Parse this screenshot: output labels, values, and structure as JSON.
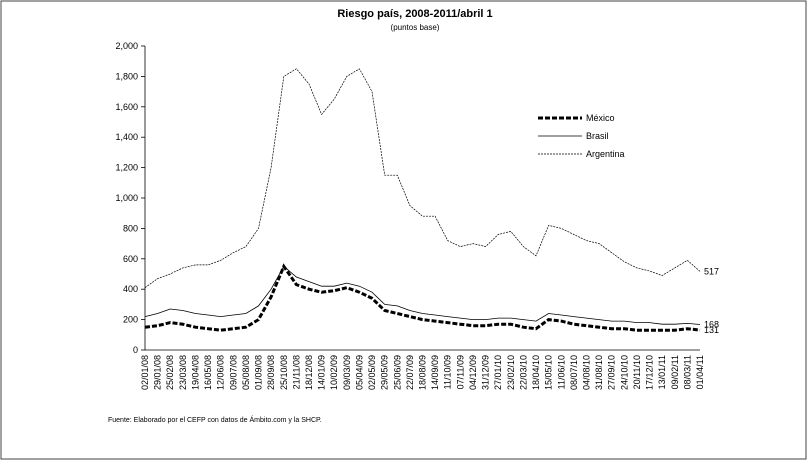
{
  "chart_data": {
    "type": "line",
    "title": "Riesgo país, 2008-2011/abril 1",
    "subtitle": "(puntos base)",
    "source": "Fuente: Elaborado por el CEFP con datos de Ámbito.com y la SHCP.",
    "categories": [
      "02/01/08",
      "29/01/08",
      "25/02/08",
      "23/03/08",
      "19/04/08",
      "16/05/08",
      "12/06/08",
      "09/07/08",
      "05/08/08",
      "01/09/08",
      "28/09/08",
      "25/10/08",
      "21/11/08",
      "18/12/08",
      "14/01/09",
      "10/02/09",
      "09/03/09",
      "05/04/09",
      "02/05/09",
      "29/05/09",
      "25/06/09",
      "22/07/09",
      "18/08/09",
      "14/09/09",
      "11/10/09",
      "07/11/09",
      "04/12/09",
      "31/12/09",
      "27/01/10",
      "23/02/10",
      "22/03/10",
      "18/04/10",
      "15/05/10",
      "11/06/10",
      "08/07/10",
      "04/08/10",
      "31/08/10",
      "27/09/10",
      "24/10/10",
      "20/11/10",
      "17/12/10",
      "13/01/11",
      "09/02/11",
      "08/03/11",
      "01/04/11"
    ],
    "series": [
      {
        "name": "México",
        "color": "#000000",
        "width": 3,
        "dash": "5,2",
        "values": [
          150,
          160,
          180,
          170,
          150,
          140,
          130,
          140,
          150,
          200,
          350,
          550,
          430,
          400,
          380,
          390,
          410,
          380,
          340,
          260,
          240,
          220,
          200,
          190,
          180,
          170,
          160,
          160,
          170,
          170,
          150,
          140,
          200,
          190,
          170,
          160,
          150,
          140,
          140,
          130,
          130,
          130,
          130,
          140,
          131
        ]
      },
      {
        "name": "Brasil",
        "color": "#000000",
        "width": 0.8,
        "dash": "none",
        "values": [
          220,
          240,
          270,
          260,
          240,
          230,
          220,
          230,
          240,
          290,
          400,
          550,
          480,
          450,
          420,
          420,
          440,
          420,
          380,
          300,
          290,
          260,
          240,
          230,
          220,
          210,
          200,
          200,
          210,
          210,
          200,
          190,
          240,
          230,
          220,
          210,
          200,
          190,
          190,
          180,
          180,
          170,
          170,
          175,
          168
        ]
      },
      {
        "name": "Argentina",
        "color": "#000000",
        "width": 0.7,
        "dash": "2,1",
        "values": [
          410,
          470,
          500,
          540,
          560,
          560,
          590,
          640,
          680,
          800,
          1200,
          1800,
          1850,
          1750,
          1550,
          1650,
          1800,
          1850,
          1700,
          1150,
          1150,
          950,
          880,
          880,
          720,
          680,
          700,
          680,
          760,
          780,
          680,
          620,
          820,
          800,
          760,
          720,
          700,
          640,
          580,
          540,
          520,
          490,
          540,
          590,
          517
        ]
      }
    ],
    "ylim": [
      0,
      2000
    ],
    "yticks": [
      0,
      200,
      400,
      600,
      800,
      {
        "value": 1000,
        "label": "1,000"
      },
      {
        "value": 1200,
        "label": "1,200"
      },
      {
        "value": 1400,
        "label": "1,400"
      },
      {
        "value": 1600,
        "label": "1,600"
      },
      {
        "value": 1800,
        "label": "1,800"
      },
      {
        "value": 2000,
        "label": "2,000"
      }
    ]
  }
}
